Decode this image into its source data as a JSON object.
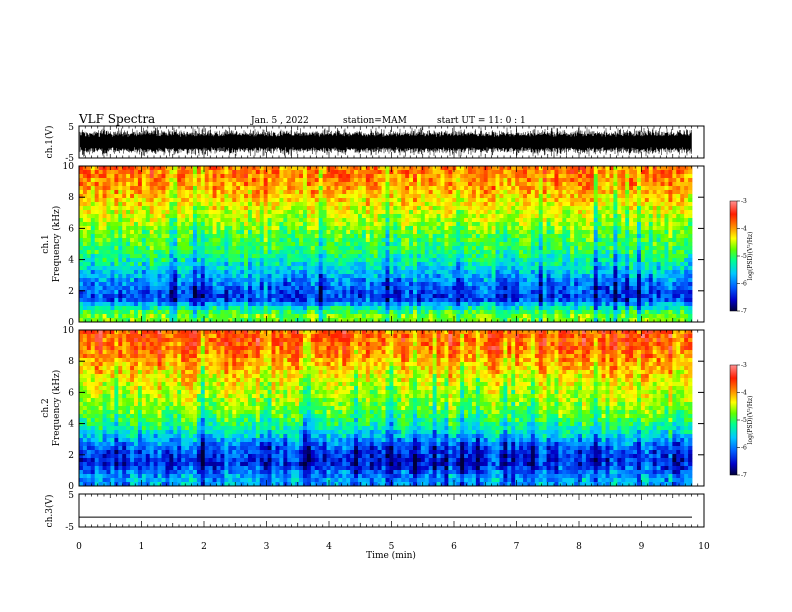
{
  "header": {
    "title": "VLF Spectra",
    "date": "Jan. 5 , 2022",
    "station": "station=MAM",
    "start": "start UT =  11: 0 : 1"
  },
  "colors": {
    "spectrogram_scale": [
      "#00003a",
      "#0000c8",
      "#0060ff",
      "#00c8ff",
      "#00ff90",
      "#60ff00",
      "#ffff00",
      "#ff9000",
      "#ff1e00",
      "#ff9090"
    ]
  },
  "chart_data": [
    {
      "panel": "waveform-ch1",
      "type": "line",
      "ylabel": "ch.1(V)",
      "ylim": [
        -5,
        5
      ],
      "y_ticks": [
        "5",
        "-5"
      ],
      "xlim": [
        0,
        10
      ]
    },
    {
      "panel": "spectrogram-ch1",
      "type": "heatmap",
      "ylabel_line1": "ch.1",
      "ylabel_line2": "Frequency (kHz)",
      "ylim": [
        0,
        10
      ],
      "y_ticks": [
        "0",
        "2",
        "4",
        "6",
        "8",
        "10"
      ],
      "xlim": [
        0,
        10
      ],
      "intensity_by_freq": [
        {
          "kHz": 0.5,
          "log_psd": -4.8
        },
        {
          "kHz": 1.5,
          "log_psd": -6.3
        },
        {
          "kHz": 2.5,
          "log_psd": -6.0
        },
        {
          "kHz": 3.5,
          "log_psd": -5.5
        },
        {
          "kHz": 4.5,
          "log_psd": -5.1
        },
        {
          "kHz": 5.5,
          "log_psd": -4.9
        },
        {
          "kHz": 6.5,
          "log_psd": -4.6
        },
        {
          "kHz": 7.5,
          "log_psd": -4.3
        },
        {
          "kHz": 8.5,
          "log_psd": -4.0
        },
        {
          "kHz": 9.5,
          "log_psd": -3.8
        }
      ],
      "colorbar": {
        "label": "log(PSD)(V²/Hz)",
        "ticks": [
          "-3",
          "-4",
          "-5",
          "-6",
          "-7"
        ],
        "range": [
          -7,
          -3
        ]
      }
    },
    {
      "panel": "spectrogram-ch2",
      "type": "heatmap",
      "ylabel_line1": "ch.2",
      "ylabel_line2": "Frequency (kHz)",
      "ylim": [
        0,
        10
      ],
      "y_ticks": [
        "0",
        "2",
        "4",
        "6",
        "8",
        "10"
      ],
      "xlim": [
        0,
        10
      ],
      "intensity_by_freq": [
        {
          "kHz": 0.5,
          "log_psd": -5.8
        },
        {
          "kHz": 1.5,
          "log_psd": -6.4
        },
        {
          "kHz": 2.5,
          "log_psd": -6.1
        },
        {
          "kHz": 3.5,
          "log_psd": -5.4
        },
        {
          "kHz": 4.5,
          "log_psd": -4.9
        },
        {
          "kHz": 5.5,
          "log_psd": -4.6
        },
        {
          "kHz": 6.5,
          "log_psd": -4.4
        },
        {
          "kHz": 7.5,
          "log_psd": -4.1
        },
        {
          "kHz": 8.5,
          "log_psd": -3.8
        },
        {
          "kHz": 9.5,
          "log_psd": -3.6
        }
      ],
      "colorbar": {
        "label": "log(PSD)(V²/Hz)",
        "ticks": [
          "-3",
          "-4",
          "-5",
          "-6",
          "-7"
        ],
        "range": [
          -7,
          -3
        ]
      }
    },
    {
      "panel": "waveform-ch3",
      "type": "line",
      "ylabel": "ch.3(V)",
      "ylim": [
        -5,
        5
      ],
      "y_ticks": [
        "5",
        "-5"
      ],
      "xlim": [
        0,
        10
      ],
      "baseline_value": -2,
      "xlabel": "Time (min)",
      "x_ticks": [
        "0",
        "1",
        "2",
        "3",
        "4",
        "5",
        "6",
        "7",
        "8",
        "9",
        "10"
      ]
    }
  ]
}
